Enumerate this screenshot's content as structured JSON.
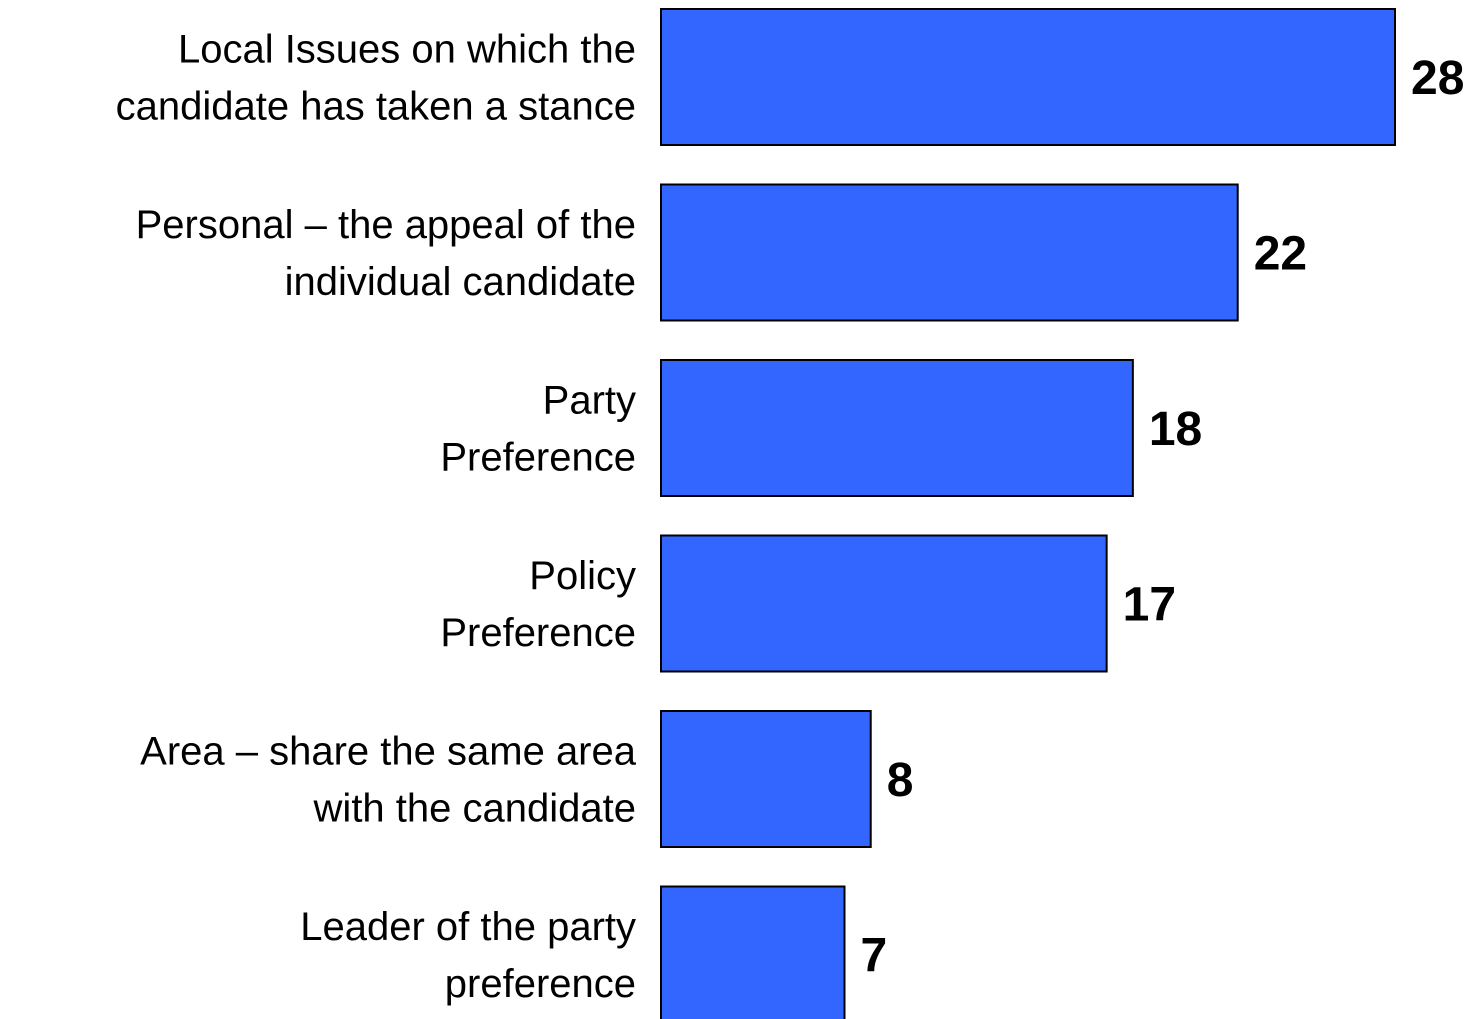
{
  "chart_data": {
    "type": "bar",
    "orientation": "horizontal",
    "categories": [
      [
        "Local Issues on which the",
        "candidate has taken a stance"
      ],
      [
        "Personal – the appeal of the",
        "individual candidate"
      ],
      [
        "Party",
        "Preference"
      ],
      [
        "Policy",
        "Preference"
      ],
      [
        "Area – share the same area",
        "with the candidate"
      ],
      [
        "Leader of the party",
        "preference"
      ]
    ],
    "values": [
      28,
      22,
      18,
      17,
      8,
      7
    ],
    "data_labels": [
      "28",
      "22",
      "18",
      "17",
      "8",
      "7"
    ],
    "xlim": [
      0,
      28
    ],
    "grid": false,
    "legend": "none",
    "bar_color": "#3366FF",
    "bar_border_color": "#000000"
  }
}
